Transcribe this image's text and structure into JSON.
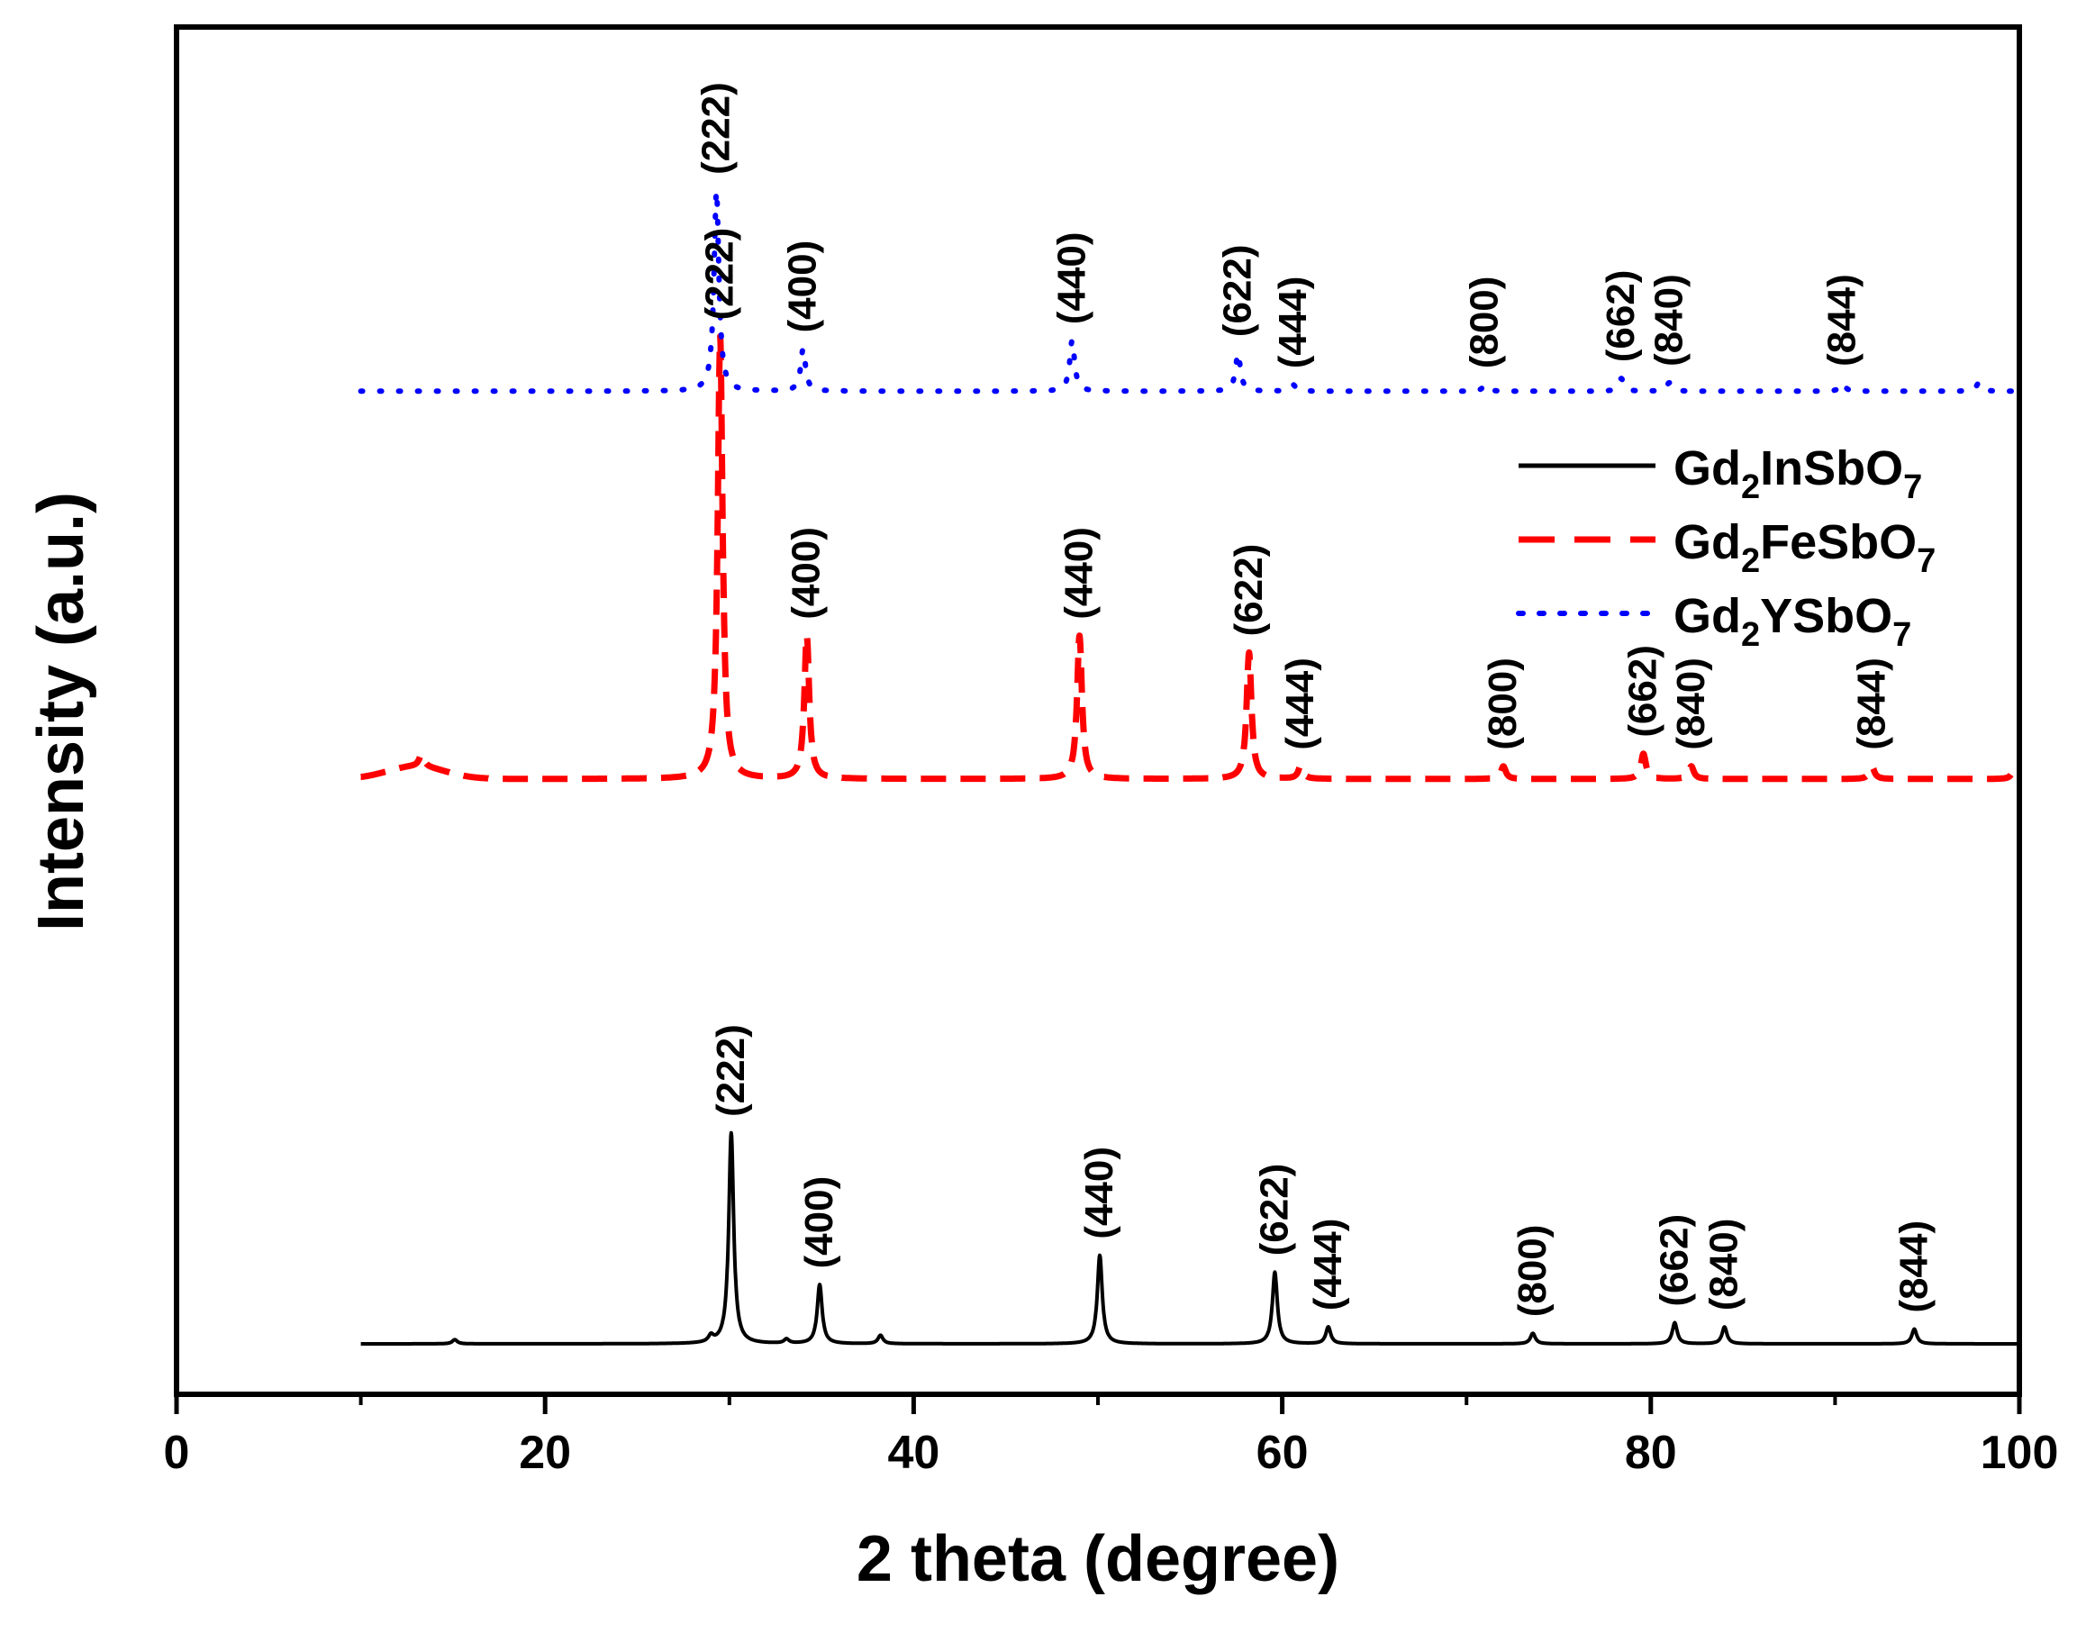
{
  "chart_data": {
    "type": "line",
    "title": "",
    "xlabel": "2 theta (degree)",
    "ylabel": "Intensity (a.u.)",
    "xlim": [
      0,
      100
    ],
    "xticks": [
      0,
      20,
      40,
      60,
      80,
      100
    ],
    "xtick_labels": [
      "0",
      "20",
      "40",
      "60",
      "80",
      "100"
    ],
    "yticks": [],
    "legend_position": "upper-right",
    "series": [
      {
        "name_main": "Gd",
        "name_sub1": "2",
        "name_mid": "InSbO",
        "name_sub2": "7",
        "color": "#000000",
        "style": "solid",
        "baseline": 0,
        "peaks": [
          {
            "x": 15.1,
            "h": 0.02,
            "label": ""
          },
          {
            "x": 29.0,
            "h": 0.03,
            "label": ""
          },
          {
            "x": 30.1,
            "h": 1.0,
            "label": "(222)"
          },
          {
            "x": 33.1,
            "h": 0.02,
            "label": ""
          },
          {
            "x": 34.9,
            "h": 0.28,
            "label": "(400)"
          },
          {
            "x": 38.2,
            "h": 0.04,
            "label": ""
          },
          {
            "x": 50.1,
            "h": 0.42,
            "label": "(440)"
          },
          {
            "x": 59.6,
            "h": 0.34,
            "label": "(622)"
          },
          {
            "x": 62.5,
            "h": 0.08,
            "label": "(444)"
          },
          {
            "x": 73.6,
            "h": 0.05,
            "label": "(800)"
          },
          {
            "x": 81.3,
            "h": 0.1,
            "label": "(662)"
          },
          {
            "x": 84.0,
            "h": 0.08,
            "label": "(840)"
          },
          {
            "x": 94.3,
            "h": 0.07,
            "label": "(844)"
          }
        ]
      },
      {
        "name_main": "Gd",
        "name_sub1": "2",
        "name_mid": "FeSbO",
        "name_sub2": "7",
        "color": "#ff0000",
        "style": "dash",
        "baseline": 2.68,
        "peaks": [
          {
            "x": 13.3,
            "h": 0.06,
            "label": ""
          },
          {
            "x": 29.5,
            "h": 2.1,
            "label": "(222)"
          },
          {
            "x": 34.2,
            "h": 0.68,
            "label": "(400)"
          },
          {
            "x": 49.0,
            "h": 0.68,
            "label": "(440)"
          },
          {
            "x": 58.2,
            "h": 0.6,
            "label": "(622)"
          },
          {
            "x": 61.0,
            "h": 0.06,
            "label": "(444)"
          },
          {
            "x": 72.0,
            "h": 0.06,
            "label": "(800)"
          },
          {
            "x": 79.6,
            "h": 0.12,
            "label": "(662)"
          },
          {
            "x": 82.2,
            "h": 0.06,
            "label": "(840)"
          },
          {
            "x": 92.0,
            "h": 0.06,
            "label": "(844)"
          },
          {
            "x": 99.7,
            "h": 0.04,
            "label": ""
          }
        ]
      },
      {
        "name_main": "Gd",
        "name_sub1": "2",
        "name_mid": "YSbO",
        "name_sub2": "7",
        "color": "#0000ff",
        "style": "dot",
        "baseline": 4.52,
        "peaks": [
          {
            "x": 29.3,
            "h": 0.95,
            "label": "(222)"
          },
          {
            "x": 34.0,
            "h": 0.2,
            "label": "(400)"
          },
          {
            "x": 48.6,
            "h": 0.24,
            "label": "(440)"
          },
          {
            "x": 57.6,
            "h": 0.18,
            "label": "(622)"
          },
          {
            "x": 60.6,
            "h": 0.03,
            "label": "(444)"
          },
          {
            "x": 71.0,
            "h": 0.03,
            "label": "(800)"
          },
          {
            "x": 78.4,
            "h": 0.06,
            "label": "(662)"
          },
          {
            "x": 81.0,
            "h": 0.04,
            "label": "(840)"
          },
          {
            "x": 90.4,
            "h": 0.04,
            "label": "(844)"
          },
          {
            "x": 97.8,
            "h": 0.04,
            "label": ""
          }
        ]
      }
    ]
  }
}
